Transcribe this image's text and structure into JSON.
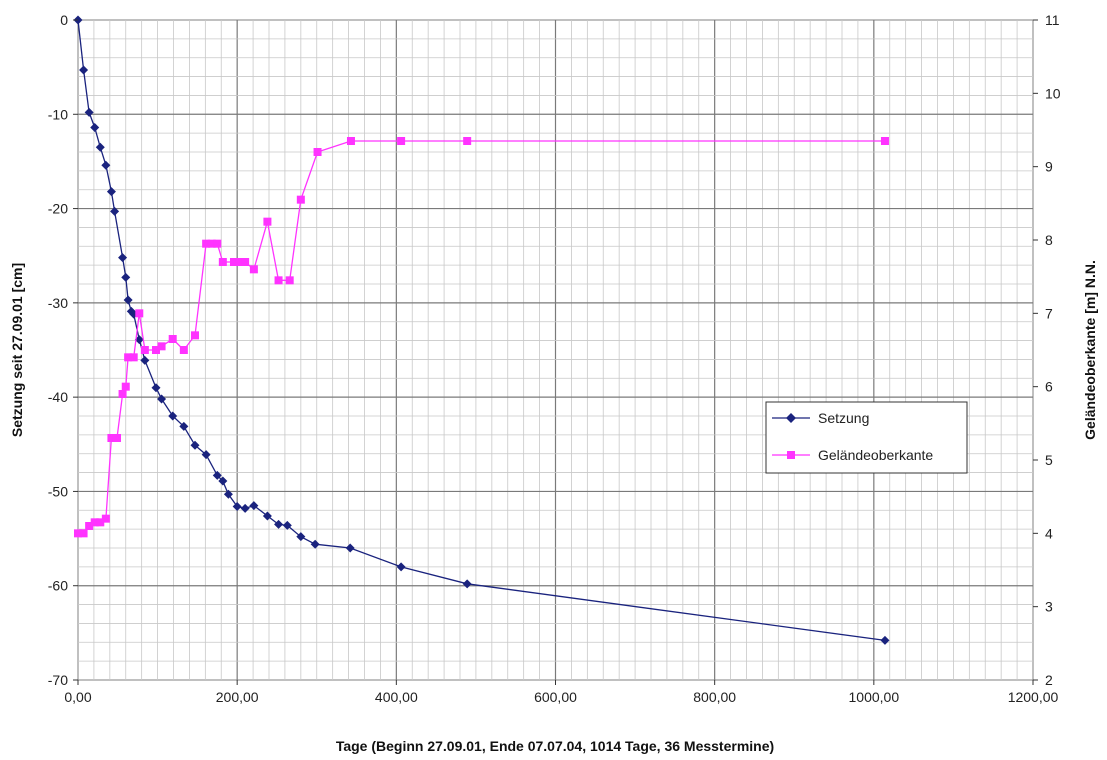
{
  "chart_data": {
    "type": "line",
    "xlabel": "Tage (Beginn 27.09.01, Ende 07.07.04, 1014 Tage, 36 Messtermine)",
    "ylabel": "Setzung seit 27.09.01 [cm]",
    "y2label": "Geländeoberkante [m] N.N.",
    "xlim": [
      0,
      1200
    ],
    "ylim": [
      -70,
      0
    ],
    "y2lim": [
      2,
      11
    ],
    "x_ticks": [
      "0,00",
      "200,00",
      "400,00",
      "600,00",
      "800,00",
      "1000,00",
      "1200,00"
    ],
    "y_ticks": [
      "0",
      "-10",
      "-20",
      "-30",
      "-40",
      "-50",
      "-60",
      "-70"
    ],
    "y2_ticks": [
      "11",
      "10",
      "9",
      "8",
      "7",
      "6",
      "5",
      "4",
      "3",
      "2"
    ],
    "grid": true,
    "legend_position": "right",
    "series": [
      {
        "name": "Setzung",
        "axis": "left",
        "color": "#1a237e",
        "marker": "diamond",
        "x": [
          0,
          7,
          14,
          21,
          28,
          35,
          42,
          46,
          56,
          60,
          63,
          67,
          70,
          77,
          84,
          98,
          105,
          119,
          133,
          147,
          161,
          175,
          182,
          189,
          200,
          210,
          221,
          238,
          252,
          263,
          280,
          298,
          342,
          406,
          489,
          1014
        ],
        "y": [
          0,
          -5.3,
          -9.8,
          -11.4,
          -13.5,
          -15.4,
          -18.2,
          -20.3,
          -25.2,
          -27.3,
          -29.7,
          -30.9,
          -31.2,
          -33.9,
          -36.1,
          -39.0,
          -40.2,
          -42.0,
          -43.1,
          -45.1,
          -46.1,
          -48.3,
          -48.9,
          -50.3,
          -51.6,
          -51.8,
          -51.5,
          -52.6,
          -53.5,
          -53.6,
          -54.8,
          -55.6,
          -56.0,
          -58.0,
          -59.8,
          -65.8
        ]
      },
      {
        "name": "Geländeoberkante",
        "axis": "right",
        "color": "#ff33ff",
        "marker": "square",
        "x": [
          0,
          7,
          14,
          21,
          28,
          35,
          42,
          49,
          56,
          60,
          63,
          70,
          77,
          84,
          98,
          105,
          119,
          133,
          147,
          161,
          168,
          175,
          182,
          196,
          203,
          210,
          221,
          238,
          252,
          266,
          280,
          301,
          343,
          406,
          489,
          1014
        ],
        "y": [
          4.0,
          4.0,
          4.1,
          4.15,
          4.15,
          4.2,
          5.3,
          5.3,
          5.9,
          6.0,
          6.4,
          6.4,
          7.0,
          6.5,
          6.5,
          6.55,
          6.65,
          6.5,
          6.7,
          7.95,
          7.95,
          7.95,
          7.7,
          7.7,
          7.7,
          7.7,
          7.6,
          8.25,
          7.45,
          7.45,
          8.55,
          9.2,
          9.35,
          9.35,
          9.35,
          9.35
        ]
      }
    ]
  }
}
